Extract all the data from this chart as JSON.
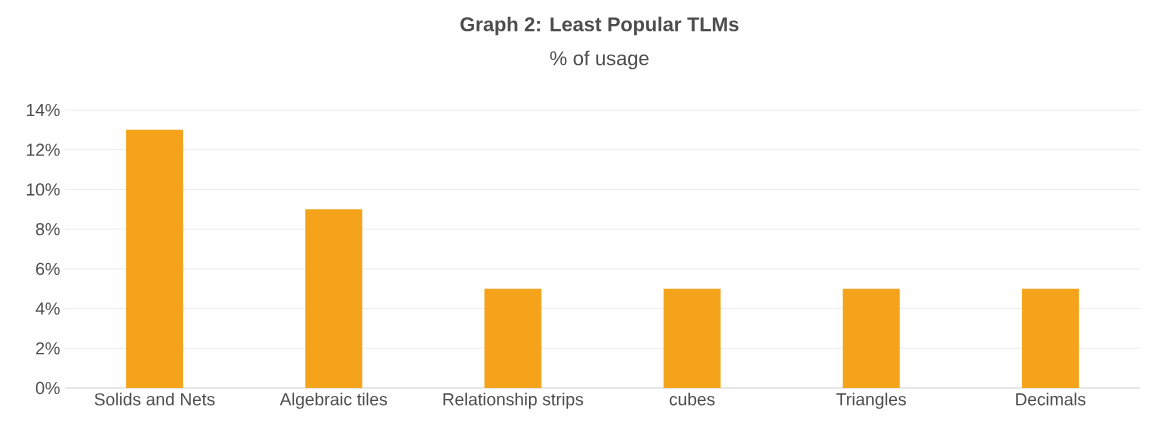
{
  "chart_data": {
    "type": "bar",
    "title": "Graph 2: Least Popular TLMs",
    "subtitle": "% of usage",
    "categories": [
      "Solids and Nets",
      "Algebraic tiles",
      "Relationship strips",
      "cubes",
      "Triangles",
      "Decimals"
    ],
    "values": [
      13,
      9,
      5,
      5,
      5,
      5
    ],
    "color": "#f5a31a",
    "ylim": [
      0,
      14
    ],
    "yticks": [
      {
        "value": 0,
        "label": "0%"
      },
      {
        "value": 2,
        "label": "2%"
      },
      {
        "value": 4,
        "label": "4%"
      },
      {
        "value": 6,
        "label": "6%"
      },
      {
        "value": 8,
        "label": "8%"
      },
      {
        "value": 10,
        "label": "10%"
      },
      {
        "value": 12,
        "label": "12%"
      },
      {
        "value": 14,
        "label": "14%"
      }
    ],
    "grid": "y"
  }
}
